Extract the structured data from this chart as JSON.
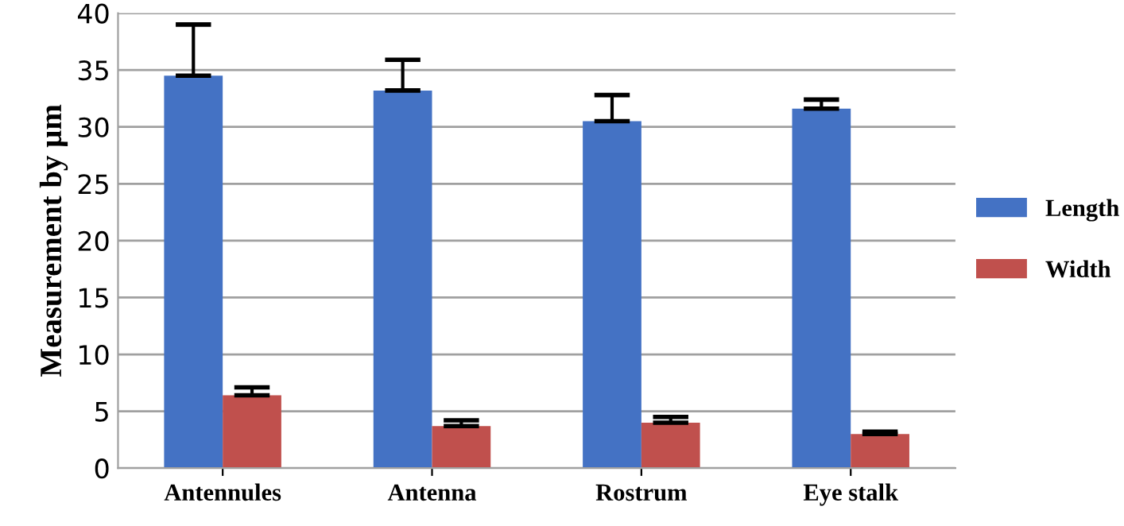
{
  "chart_data": {
    "type": "bar",
    "ylabel": "Measurement by µm",
    "categories": [
      "Antennules",
      "Antenna",
      "Rostrum",
      "Eye stalk"
    ],
    "series": [
      {
        "name": "Length",
        "color": "#4472c4",
        "values": [
          34.5,
          33.2,
          30.5,
          31.6
        ],
        "errors": [
          [
            34.5,
            39.0
          ],
          [
            33.2,
            35.9
          ],
          [
            30.5,
            32.8
          ],
          [
            31.6,
            32.4
          ]
        ]
      },
      {
        "name": "Width",
        "color": "#c0504d",
        "values": [
          6.4,
          3.7,
          4.0,
          3.0
        ],
        "errors": [
          [
            6.4,
            7.1
          ],
          [
            3.7,
            4.2
          ],
          [
            4.0,
            4.5
          ],
          [
            3.0,
            3.2
          ]
        ]
      }
    ],
    "ylim": [
      0,
      40
    ],
    "yticks": [
      0,
      5,
      10,
      15,
      20,
      25,
      30,
      35,
      40
    ],
    "grid": "y",
    "legend": "right"
  }
}
